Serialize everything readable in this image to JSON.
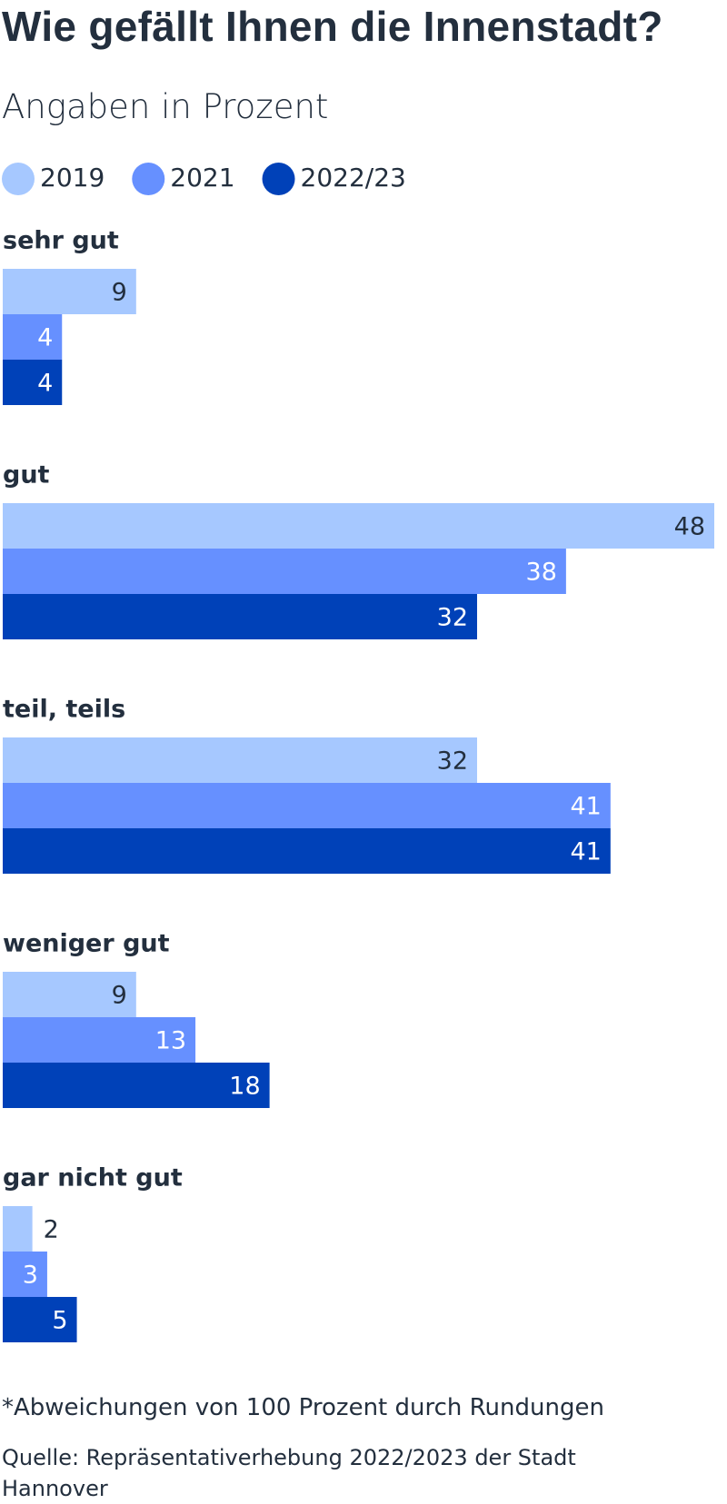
{
  "chart_data": {
    "type": "bar",
    "orientation": "horizontal",
    "title": "Wie gefällt Ihnen die Innenstadt?",
    "subtitle": "Angaben in Prozent",
    "categories": [
      "sehr gut",
      "gut",
      "teil, teils",
      "weniger gut",
      "gar nicht gut"
    ],
    "series": [
      {
        "name": "2019",
        "color": "#a6c8ff",
        "values": [
          9,
          48,
          32,
          9,
          2
        ]
      },
      {
        "name": "2021",
        "color": "#6690ff",
        "values": [
          4,
          38,
          41,
          13,
          3
        ]
      },
      {
        "name": "2022/23",
        "color": "#0041b8",
        "values": [
          4,
          32,
          41,
          18,
          5
        ]
      }
    ],
    "footnote": "*Abweichungen von 100 Prozent durch Rundungen",
    "source": "Quelle: Repräsentativerhebung 2022/2023 der Stadt Hannover"
  }
}
